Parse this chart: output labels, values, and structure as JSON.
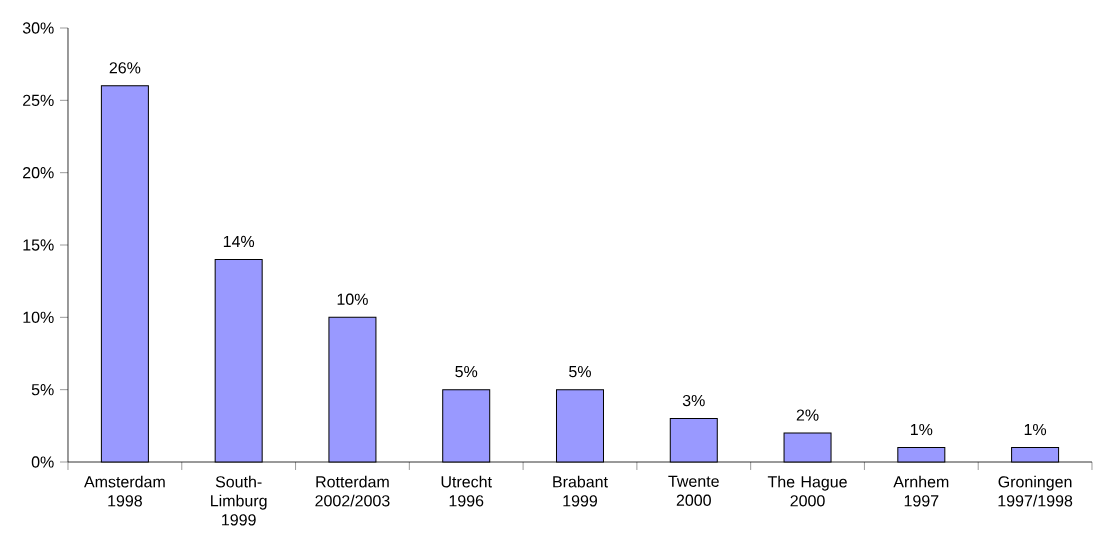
{
  "chart_data": {
    "type": "bar",
    "categories": [
      "Amsterdam 1998",
      "South-Limburg 1999",
      "Rotterdam 2002/2003",
      "Utrecht 1996",
      "Brabant 1999",
      "Twente 2000",
      "The Hague 2000",
      "Arnhem 1997",
      "Groningen 1997/1998"
    ],
    "values": [
      26,
      14,
      10,
      5,
      5,
      3,
      2,
      1,
      1
    ],
    "value_labels": [
      "26%",
      "14%",
      "10%",
      "5%",
      "5%",
      "3%",
      "2%",
      "1%",
      "1%"
    ],
    "color": "#9999ff",
    "ylim": [
      0,
      30
    ],
    "yticks": [
      {
        "value": 0,
        "label": "0%"
      },
      {
        "value": 5,
        "label": "5%"
      },
      {
        "value": 10,
        "label": "10%"
      },
      {
        "value": 15,
        "label": "15%"
      },
      {
        "value": 20,
        "label": "20%"
      },
      {
        "value": 25,
        "label": "25%"
      },
      {
        "value": 30,
        "label": "30%"
      }
    ],
    "grid": false
  }
}
